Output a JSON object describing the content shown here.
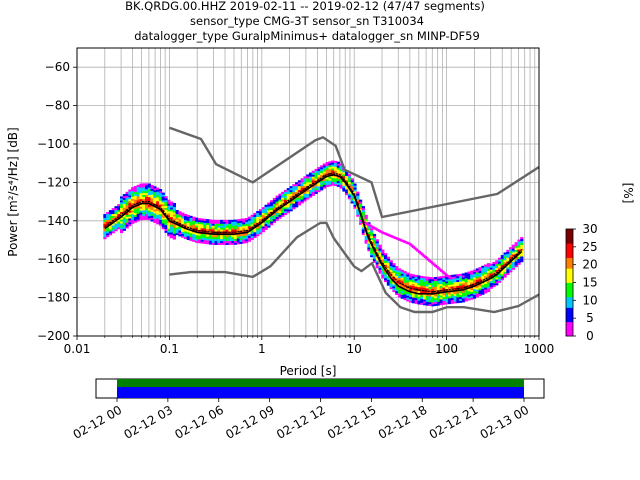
{
  "title": {
    "line1": "BK.QRDG.00.HHZ   2019-02-11 -- 2019-02-12  (47/47 segments)",
    "line2": "sensor_type CMG-3T sensor_sn T310034",
    "line3": "datalogger_type GuralpMinimus+ datalogger_sn MINP-DF59"
  },
  "colorbar": {
    "label": "[%]",
    "ticks": [
      "0",
      "5",
      "10",
      "15",
      "20",
      "25",
      "30"
    ],
    "min": 0,
    "max": 30
  },
  "timeline": {
    "tick_labels": [
      "02-12 00",
      "02-12 03",
      "02-12 06",
      "02-12 09",
      "02-12 12",
      "02-12 15",
      "02-12 18",
      "02-12 21",
      "02-13 00"
    ],
    "coverage_start": "02-12 00",
    "coverage_end": "02-13 00",
    "bar_colors": [
      "#008000",
      "#0000ff"
    ]
  },
  "chart_data": {
    "type": "heatmap",
    "xlabel": "Period [s]",
    "ylabel": "Power [m²/s⁴/Hz] [dB]",
    "xscale": "log",
    "xlim": [
      0.01,
      1000
    ],
    "ylim": [
      -200,
      -50
    ],
    "x_tick_labels": [
      "0.01",
      "0.1",
      "1",
      "10",
      "100",
      "1000"
    ],
    "y_ticks": [
      -60,
      -80,
      -100,
      -120,
      -140,
      -160,
      -180,
      -200
    ],
    "grid": true,
    "colormap": [
      "#ff00ff",
      "#0000ff",
      "#00c8ff",
      "#00ff00",
      "#ffff00",
      "#ff7f00",
      "#ff0000",
      "#7a0000"
    ],
    "noise_model_color": "#666666",
    "nhnm": {
      "period": [
        0.1,
        0.22,
        0.32,
        0.8,
        3.8,
        4.6,
        6.3,
        7.9,
        15.4,
        20,
        354.8,
        1000
      ],
      "db": [
        -91.5,
        -97.4,
        -110.5,
        -120,
        -98,
        -96.5,
        -101,
        -113.5,
        -120,
        -138,
        -126,
        -112
      ]
    },
    "nlnm": {
      "period": [
        0.1,
        0.17,
        0.4,
        0.8,
        1.24,
        2.4,
        4.3,
        5.0,
        6.0,
        10.0,
        12.0,
        15.6,
        21.9,
        31.6,
        45.0,
        70.0,
        101.0,
        154.0,
        328.0,
        600.0,
        1000
      ],
      "db": [
        -168,
        -166.7,
        -166.7,
        -169.2,
        -163.7,
        -148.6,
        -141.1,
        -141.1,
        -149.0,
        -163.8,
        -166.2,
        -162.1,
        -177.5,
        -185.0,
        -187.5,
        -187.5,
        -185.0,
        -185.0,
        -187.5,
        -184.4,
        -178.4
      ]
    },
    "mode": {
      "period": [
        0.02,
        0.03,
        0.04,
        0.05,
        0.06,
        0.08,
        0.1,
        0.15,
        0.2,
        0.3,
        0.5,
        0.7,
        1.0,
        1.5,
        2.0,
        3.0,
        4.0,
        5.0,
        6.0,
        7.0,
        8.0,
        10.0,
        12.0,
        14.0,
        16.0,
        20.0,
        25.0,
        30.0,
        40.0,
        50.0,
        70.0,
        100.0,
        150.0,
        200.0,
        300.0,
        350.0,
        500.0,
        650.0
      ],
      "db": [
        -143,
        -137,
        -132,
        -130,
        -130,
        -133,
        -139,
        -143,
        -145,
        -146,
        -146,
        -145,
        -140,
        -133,
        -129,
        -123,
        -119,
        -116,
        -115,
        -116,
        -119,
        -126,
        -137,
        -147,
        -153,
        -162,
        -168,
        -172,
        -175,
        -176,
        -177,
        -176,
        -175,
        -173,
        -169,
        -167,
        -160,
        -155
      ]
    },
    "mean": {
      "period": [
        0.02,
        0.03,
        0.04,
        0.05,
        0.06,
        0.08,
        0.1,
        0.15,
        0.2,
        0.3,
        0.5,
        0.7,
        1.0,
        1.5,
        2.0,
        3.0,
        4.0,
        5.0,
        6.0,
        7.0,
        8.0,
        10.0,
        12.0,
        14.0,
        16.0,
        20.0,
        25.0,
        30.0,
        40.0,
        50.0,
        70.0,
        100.0,
        150.0,
        200.0,
        300.0,
        350.0,
        500.0,
        650.0
      ],
      "db": [
        -144,
        -138,
        -133,
        -131,
        -131,
        -134,
        -140,
        -144,
        -146,
        -147,
        -147,
        -146,
        -141,
        -134,
        -130,
        -124,
        -120,
        -117,
        -116,
        -117,
        -120,
        -127,
        -138,
        -148,
        -154,
        -163,
        -170,
        -174,
        -177,
        -178,
        -178,
        -177,
        -176,
        -174,
        -170,
        -168,
        -161,
        -156
      ]
    }
  }
}
